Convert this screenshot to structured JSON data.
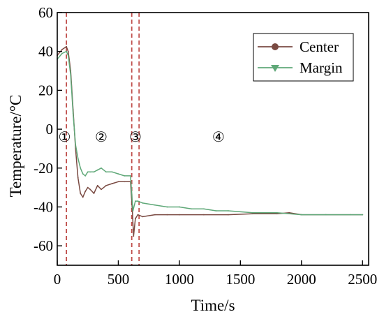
{
  "chart_data": {
    "type": "line",
    "title": "",
    "xlabel": "Time/s",
    "ylabel": "Temperature/°C",
    "xlim": [
      0,
      2550
    ],
    "ylim": [
      -70,
      60
    ],
    "xticks": [
      0,
      500,
      1000,
      1500,
      2000,
      2500
    ],
    "yticks": [
      60,
      40,
      20,
      0,
      -20,
      -40,
      -60
    ],
    "legend_position": "top-right",
    "grid": false,
    "series": [
      {
        "name": "Center",
        "color": "#7a4a42",
        "marker": "circle",
        "x": [
          0,
          40,
          75,
          90,
          110,
          130,
          150,
          170,
          190,
          210,
          230,
          250,
          270,
          300,
          330,
          360,
          400,
          450,
          500,
          550,
          600,
          615,
          625,
          640,
          660,
          700,
          800,
          900,
          1000,
          1200,
          1400,
          1600,
          1800,
          1900,
          2000,
          2200,
          2400,
          2500
        ],
        "y": [
          38,
          41,
          42.5,
          40,
          30,
          10,
          -10,
          -25,
          -33,
          -35,
          -32,
          -30,
          -31,
          -33,
          -29,
          -31,
          -29,
          -28,
          -27,
          -27,
          -27,
          -42,
          -55,
          -46,
          -44,
          -45,
          -44,
          -44,
          -44,
          -44,
          -44,
          -43.5,
          -43.5,
          -43,
          -44,
          -44,
          -44,
          -44
        ]
      },
      {
        "name": "Margin",
        "color": "#5fa878",
        "marker": "triangle-down",
        "x": [
          0,
          40,
          75,
          90,
          110,
          130,
          150,
          170,
          190,
          210,
          230,
          250,
          270,
          300,
          330,
          360,
          400,
          450,
          500,
          550,
          600,
          610,
          620,
          640,
          660,
          700,
          800,
          900,
          1000,
          1100,
          1200,
          1300,
          1400,
          1600,
          1800,
          2000,
          2200,
          2400,
          2500
        ],
        "y": [
          36,
          39,
          40,
          38,
          28,
          8,
          -8,
          -15,
          -20,
          -23,
          -24,
          -22,
          -22,
          -22,
          -21,
          -20,
          -22,
          -22,
          -23,
          -24,
          -24,
          -33,
          -42,
          -37,
          -37,
          -38,
          -39,
          -40,
          -40,
          -41,
          -41,
          -42,
          -42,
          -43,
          -43,
          -44,
          -44,
          -44,
          -44
        ]
      }
    ],
    "region_lines": [
      75,
      610,
      670
    ],
    "region_labels": [
      {
        "text": "①",
        "x": 60
      },
      {
        "text": "②",
        "x": 360
      },
      {
        "text": "③",
        "x": 640
      },
      {
        "text": "④",
        "x": 1320
      }
    ],
    "region_label_y": -4,
    "region_line_color": "#c0504d"
  }
}
